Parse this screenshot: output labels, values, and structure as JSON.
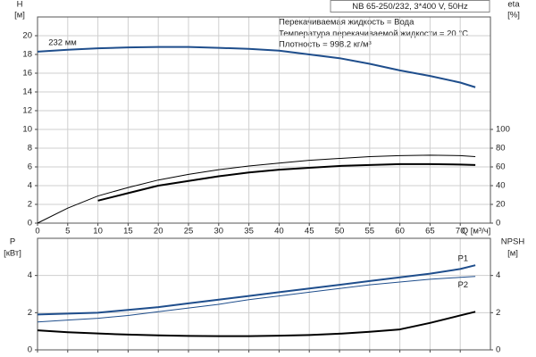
{
  "chart_data": [
    {
      "type": "line",
      "title": "NB 65-250/232, 3*400 V, 50Hz",
      "annotations": [
        "Перекачиваемая жидкость = Вода",
        "Температура перекачиваемой жидкости = 20 °C",
        "Плотность = 998.2 кг/м³"
      ],
      "ylabel": "H",
      "yunit": "[м]",
      "y2label": "eta",
      "y2unit": "[%]",
      "xlabel": "Q [м³/ч]",
      "x": [
        0,
        5,
        10,
        15,
        20,
        25,
        30,
        35,
        40,
        45,
        50,
        55,
        60,
        65,
        70,
        72.5
      ],
      "xlim": [
        0,
        75
      ],
      "xticks": [
        0,
        5,
        10,
        15,
        20,
        25,
        30,
        35,
        40,
        45,
        50,
        55,
        60,
        65,
        70
      ],
      "ylim": [
        0,
        22
      ],
      "yticks": [
        0,
        2,
        4,
        6,
        8,
        10,
        12,
        14,
        16,
        18,
        20
      ],
      "y2lim": [
        0,
        220
      ],
      "y2ticks": [
        0,
        20,
        40,
        60,
        80,
        100
      ],
      "grid": true,
      "series": [
        {
          "name": "232 мм",
          "color": "#1f4e8c",
          "values": [
            18.3,
            18.5,
            18.65,
            18.75,
            18.8,
            18.8,
            18.7,
            18.6,
            18.4,
            18.0,
            17.6,
            17.0,
            16.3,
            15.7,
            15.0,
            14.5
          ]
        },
        {
          "color": "#000000",
          "axis": "y2",
          "values": [
            0,
            16,
            29,
            38,
            46,
            52,
            57,
            61,
            64,
            67,
            69,
            71,
            72,
            72.5,
            72,
            71
          ]
        },
        {
          "color": "#000000",
          "axis": "y2",
          "values": [
            null,
            null,
            24,
            32,
            40,
            45,
            50,
            54,
            57,
            59,
            61,
            62,
            63,
            63,
            62.5,
            62
          ]
        }
      ]
    },
    {
      "type": "line",
      "ylabel": "P",
      "yunit": "[кВт]",
      "y2label": "NPSH",
      "y2unit": "[м]",
      "x": [
        0,
        5,
        10,
        15,
        20,
        25,
        30,
        35,
        40,
        45,
        50,
        55,
        60,
        65,
        70,
        72.5
      ],
      "xlim": [
        0,
        75
      ],
      "xticks": [
        0,
        5,
        10,
        15,
        20,
        25,
        30,
        35,
        40,
        45,
        50,
        55,
        60,
        65,
        70
      ],
      "ylim": [
        0,
        6
      ],
      "yticks": [
        0,
        2,
        4
      ],
      "y2lim": [
        0,
        6
      ],
      "y2ticks": [
        0,
        2,
        4
      ],
      "grid": true,
      "series": [
        {
          "name": "P1",
          "color": "#1f4e8c",
          "values": [
            1.9,
            1.95,
            2.0,
            2.15,
            2.3,
            2.5,
            2.7,
            2.9,
            3.1,
            3.3,
            3.5,
            3.7,
            3.9,
            4.1,
            4.35,
            4.55
          ]
        },
        {
          "name": "P2",
          "color": "#1f4e8c",
          "values": [
            1.5,
            1.6,
            1.7,
            1.85,
            2.05,
            2.25,
            2.45,
            2.7,
            2.9,
            3.1,
            3.3,
            3.5,
            3.65,
            3.8,
            3.9,
            3.95
          ]
        },
        {
          "color": "#000000",
          "axis": "y2",
          "values": [
            1.05,
            0.95,
            0.88,
            0.82,
            0.78,
            0.75,
            0.74,
            0.74,
            0.76,
            0.8,
            0.87,
            0.97,
            1.1,
            1.45,
            1.85,
            2.05
          ]
        }
      ]
    }
  ]
}
